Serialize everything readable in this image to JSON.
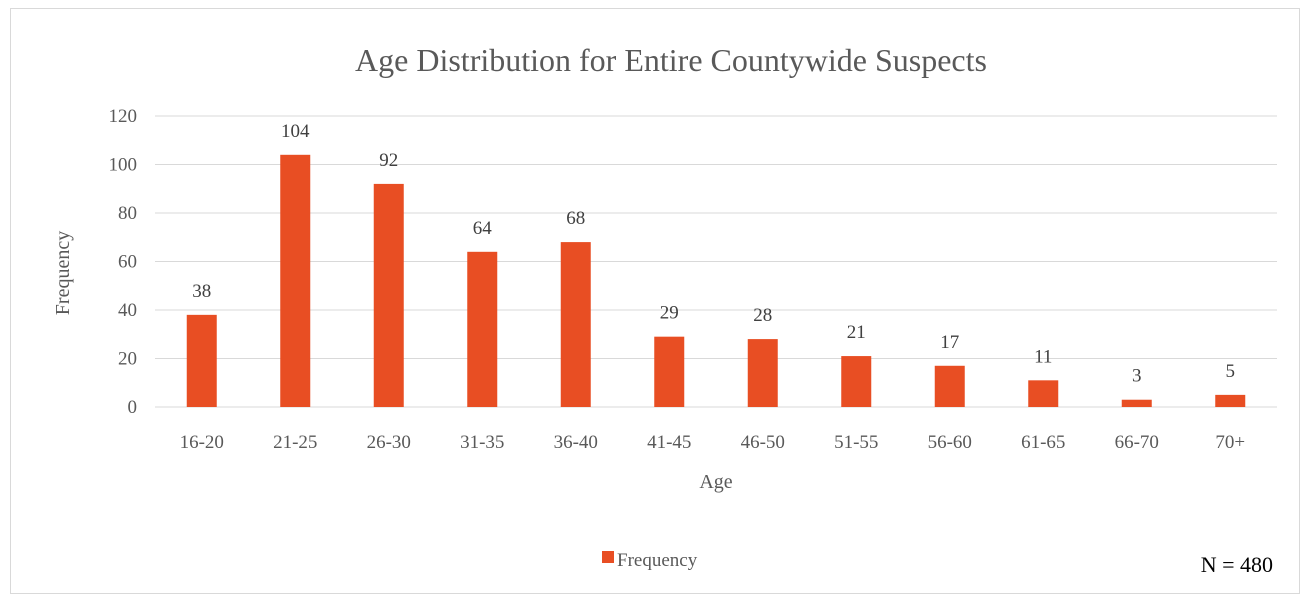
{
  "chart_data": {
    "type": "bar",
    "title": "Age Distribution for Entire Countywide Suspects",
    "xlabel": "Age",
    "ylabel": "Frequency",
    "categories": [
      "16-20",
      "21-25",
      "26-30",
      "31-35",
      "36-40",
      "41-45",
      "46-50",
      "51-55",
      "56-60",
      "61-65",
      "66-70",
      "70+"
    ],
    "series": [
      {
        "name": "Frequency",
        "values": [
          38,
          104,
          92,
          64,
          68,
          29,
          28,
          21,
          17,
          11,
          3,
          5
        ],
        "color": "#e84e23"
      }
    ],
    "ylim": [
      0,
      120
    ],
    "yticks": [
      0,
      20,
      40,
      60,
      80,
      100,
      120
    ],
    "data_labels": true,
    "grid": true,
    "legend_position": "bottom"
  },
  "annotation": {
    "note": "N = 480"
  }
}
